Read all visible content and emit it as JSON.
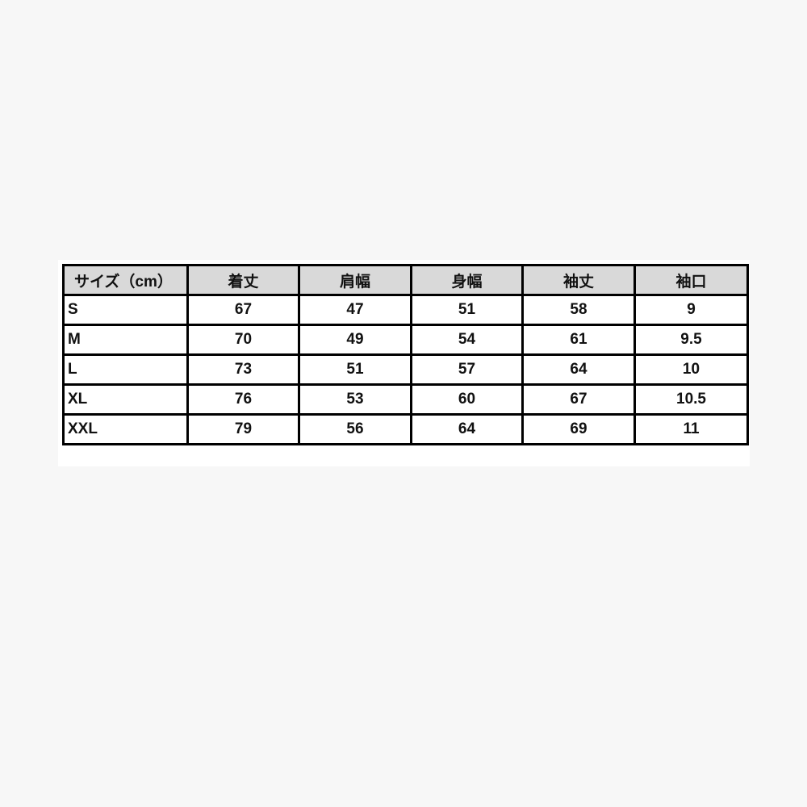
{
  "table": {
    "headers": [
      "サイズ（cm）",
      "着丈",
      "肩幅",
      "身幅",
      "袖丈",
      "袖口"
    ],
    "rows": [
      [
        "S",
        "67",
        "47",
        "51",
        "58",
        "9"
      ],
      [
        "M",
        "70",
        "49",
        "54",
        "61",
        "9.5"
      ],
      [
        "L",
        "73",
        "51",
        "57",
        "64",
        "10"
      ],
      [
        "XL",
        "76",
        "53",
        "60",
        "67",
        "10.5"
      ],
      [
        "XXL",
        "79",
        "56",
        "64",
        "69",
        "11"
      ]
    ]
  }
}
